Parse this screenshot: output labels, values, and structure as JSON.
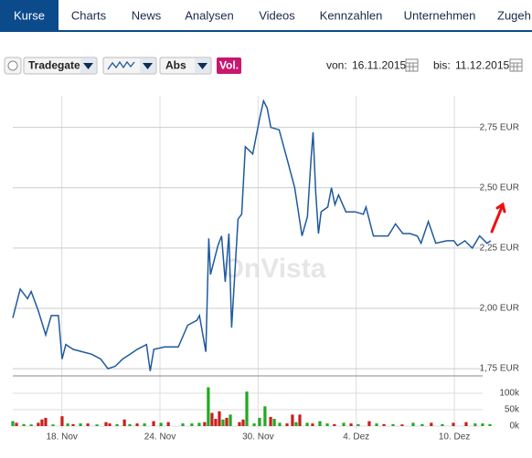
{
  "tabs": [
    "Kurse",
    "Charts",
    "News",
    "Analysen",
    "Videos",
    "Kennzahlen",
    "Unternehmen",
    "Zugeh"
  ],
  "active_tab": 0,
  "toolbar": {
    "exchange": "Tradegate",
    "mode": "Abs",
    "volume_button": "Vol.",
    "from_label": "von:",
    "from": "16.11.2015",
    "to_label": "bis:",
    "to": "11.12.2015"
  },
  "chart_data": {
    "type": "line",
    "color": "#1f5a9e",
    "grid": true,
    "watermark": "OnVista",
    "x": [
      0,
      0.3,
      0.6,
      0.75,
      1.04,
      1.34,
      1.57,
      1.86,
      2.01,
      2.16,
      2.46,
      2.84,
      3.21,
      3.58,
      3.88,
      4.18,
      4.48,
      4.78,
      5.07,
      5.45,
      5.6,
      5.75,
      6.19,
      6.75,
      7.13,
      7.5,
      7.61,
      7.87,
      7.99,
      8.06,
      8.36,
      8.51,
      8.66,
      8.81,
      8.92,
      9.18,
      9.33,
      9.48,
      9.78,
      10.07,
      10.22,
      10.37,
      10.52,
      10.86,
      11.23,
      11.49,
      11.79,
      12.01,
      12.16,
      12.24,
      12.35,
      12.46,
      12.57,
      12.84,
      12.99,
      13.13,
      13.28,
      13.58,
      13.96,
      14.29,
      14.4,
      14.7,
      15.0,
      15.3,
      15.6,
      15.9,
      16.19,
      16.49,
      16.64,
      16.94,
      17.24,
      17.69,
      17.98,
      18.13,
      18.43,
      18.73,
      19.03,
      19.33,
      19.48
    ],
    "values": [
      1.96,
      2.08,
      2.04,
      2.07,
      1.99,
      1.89,
      1.97,
      1.97,
      1.79,
      1.85,
      1.83,
      1.82,
      1.81,
      1.79,
      1.75,
      1.76,
      1.79,
      1.81,
      1.83,
      1.85,
      1.74,
      1.83,
      1.84,
      1.84,
      1.93,
      1.95,
      1.97,
      1.82,
      2.29,
      2.14,
      2.26,
      2.3,
      2.11,
      2.31,
      1.92,
      2.37,
      2.39,
      2.67,
      2.64,
      2.79,
      2.86,
      2.83,
      2.75,
      2.74,
      2.6,
      2.5,
      2.3,
      2.38,
      2.62,
      2.73,
      2.48,
      2.31,
      2.4,
      2.42,
      2.5,
      2.43,
      2.47,
      2.4,
      2.4,
      2.39,
      2.42,
      2.3,
      2.3,
      2.3,
      2.35,
      2.31,
      2.31,
      2.3,
      2.27,
      2.36,
      2.27,
      2.28,
      2.28,
      2.26,
      2.28,
      2.25,
      2.3,
      2.27,
      2.28
    ],
    "xlim": [
      0,
      19.6
    ],
    "xticks": [
      {
        "value": 2,
        "label": "18. Nov"
      },
      {
        "value": 6,
        "label": "24. Nov"
      },
      {
        "value": 10,
        "label": "30. Nov"
      },
      {
        "value": 14,
        "label": "4. Dez"
      },
      {
        "value": 18,
        "label": "10. Dez"
      }
    ],
    "ylim": [
      1.72,
      2.9
    ],
    "yticks": [
      {
        "value": 1.75,
        "label": "1,75 EUR"
      },
      {
        "value": 2.0,
        "label": "2,00 EUR"
      },
      {
        "value": 2.25,
        "label": "2,25 EUR"
      },
      {
        "value": 2.5,
        "label": "2,50 EUR"
      },
      {
        "value": 2.75,
        "label": "2,75 EUR"
      }
    ],
    "volume": {
      "type": "bar",
      "x": [
        0,
        0.15,
        0.45,
        0.75,
        1.04,
        1.19,
        1.34,
        1.64,
        2.01,
        2.24,
        2.46,
        2.76,
        3.06,
        3.43,
        3.8,
        3.95,
        4.25,
        4.55,
        4.77,
        5.07,
        5.37,
        5.74,
        6.04,
        6.34,
        6.93,
        7.3,
        7.6,
        7.82,
        7.97,
        8.12,
        8.27,
        8.42,
        8.57,
        8.72,
        8.87,
        9.24,
        9.39,
        9.54,
        9.84,
        10.06,
        10.28,
        10.51,
        10.66,
        10.88,
        11.18,
        11.4,
        11.55,
        11.7,
        12.0,
        12.22,
        12.52,
        12.82,
        13.11,
        13.49,
        13.79,
        14.08,
        14.53,
        14.83,
        15.13,
        15.5,
        15.87,
        16.32,
        16.69,
        17.06,
        17.51,
        17.96,
        18.48,
        18.85,
        19.15,
        19.45
      ],
      "values": [
        15000,
        10000,
        6000,
        5000,
        10000,
        20000,
        25000,
        5000,
        30000,
        8000,
        6000,
        8000,
        8000,
        5000,
        12000,
        8000,
        6000,
        20000,
        6000,
        8000,
        8000,
        15000,
        10000,
        12000,
        8000,
        8000,
        10000,
        12000,
        118000,
        40000,
        22000,
        45000,
        20000,
        25000,
        35000,
        12000,
        20000,
        105000,
        8000,
        25000,
        60000,
        28000,
        22000,
        10000,
        8000,
        35000,
        12000,
        35000,
        10000,
        8000,
        15000,
        8000,
        6000,
        10000,
        8000,
        6000,
        15000,
        8000,
        6000,
        6000,
        5000,
        10000,
        6000,
        10000,
        6000,
        10000,
        12000,
        8000,
        8000,
        6000
      ],
      "colors": [
        "#22a822",
        "#c81e1e",
        "#22a822",
        "#22a822",
        "#c81e1e",
        "#c81e1e",
        "#c81e1e",
        "#22a822",
        "#c81e1e",
        "#22a822",
        "#c81e1e",
        "#22a822",
        "#c81e1e",
        "#22a822",
        "#c81e1e",
        "#c81e1e",
        "#22a822",
        "#c81e1e",
        "#22a822",
        "#c81e1e",
        "#22a822",
        "#c81e1e",
        "#22a822",
        "#c81e1e",
        "#22a822",
        "#22a822",
        "#22a822",
        "#c81e1e",
        "#22a822",
        "#c81e1e",
        "#c81e1e",
        "#c81e1e",
        "#22a822",
        "#c81e1e",
        "#22a822",
        "#c81e1e",
        "#c81e1e",
        "#22a822",
        "#22a822",
        "#22a822",
        "#22a822",
        "#c81e1e",
        "#22a822",
        "#22a822",
        "#c81e1e",
        "#c81e1e",
        "#22a822",
        "#c81e1e",
        "#22a822",
        "#c81e1e",
        "#22a822",
        "#22a822",
        "#c81e1e",
        "#22a822",
        "#c81e1e",
        "#22a822",
        "#c81e1e",
        "#22a822",
        "#c81e1e",
        "#22a822",
        "#c81e1e",
        "#22a822",
        "#22a822",
        "#c81e1e",
        "#22a822",
        "#c81e1e",
        "#c81e1e",
        "#22a822",
        "#22a822",
        "#22a822"
      ],
      "ylim": [
        0,
        150000
      ],
      "yticks": [
        {
          "value": 0,
          "label": "0k"
        },
        {
          "value": 50000,
          "label": "50k"
        },
        {
          "value": 100000,
          "label": "100k"
        }
      ]
    }
  }
}
